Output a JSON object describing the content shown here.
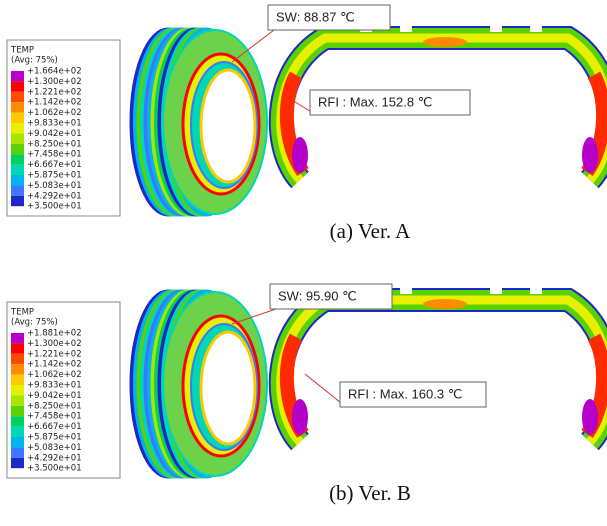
{
  "panels": [
    {
      "legend": {
        "title": "TEMP",
        "subtitle": "(Avg: 75%)",
        "labels": [
          "+1.664e+02",
          "+1.300e+02",
          "+1.221e+02",
          "+1.142e+02",
          "+1.062e+02",
          "+9.833e+01",
          "+9.042e+01",
          "+8.250e+01",
          "+7.458e+01",
          "+6.667e+01",
          "+5.875e+01",
          "+5.083e+01",
          "+4.292e+01",
          "+3.500e+01"
        ]
      },
      "sw": "SW: 88.87 ℃",
      "rfi": "RFI : Max. 152.8 ℃",
      "caption": "(a) Ver. A"
    },
    {
      "legend": {
        "title": "TEMP",
        "subtitle": "(Avg: 75%)",
        "labels": [
          "+1.881e+02",
          "+1.300e+02",
          "+1.221e+02",
          "+1.142e+02",
          "+1.062e+02",
          "+9.833e+01",
          "+9.042e+01",
          "+8.250e+01",
          "+7.458e+01",
          "+6.667e+01",
          "+5.875e+01",
          "+5.083e+01",
          "+4.292e+01",
          "+3.500e+01"
        ]
      },
      "sw": "SW: 95.90 ℃",
      "rfi": "RFI : Max. 160.3 ℃",
      "caption": "(b) Ver. B"
    }
  ]
}
